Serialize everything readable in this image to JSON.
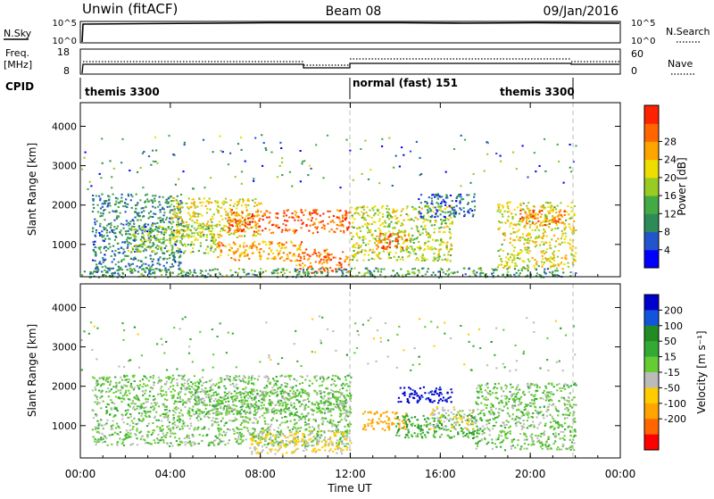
{
  "header": {
    "title_left": "Unwin (fitACF)",
    "title_center": "Beam 08",
    "title_right": "09/Jan/2016"
  },
  "aux": {
    "nsky_label": "N.Sky",
    "nsky_ticks": [
      "10^5",
      "10^0"
    ],
    "nsearch_ticks": [
      "10^5",
      "10^0"
    ],
    "nsearch_label": "N.Search",
    "freq_label": "Freq.",
    "freq_unit": "[MHz]",
    "freq_ticks": [
      "18",
      "8"
    ],
    "nave_ticks": [
      "60",
      "0"
    ],
    "nave_label": "Nave",
    "cpid_label": "CPID",
    "cpid_segments": [
      "themis 3300",
      "normal (fast) 151",
      "themis 3300"
    ],
    "cpid_breaks_hours": [
      12,
      22
    ]
  },
  "axes": {
    "ylabel": "Slant Range [km]",
    "yticks": [
      "1000",
      "2000",
      "3000",
      "4000"
    ],
    "xlabel": "Time UT",
    "xticks": [
      "00:00",
      "04:00",
      "08:00",
      "12:00",
      "16:00",
      "20:00",
      "00:00"
    ]
  },
  "power_cbar": {
    "label": "Power [dB]",
    "ticks": [
      "4",
      "8",
      "12",
      "16",
      "20",
      "24",
      "28"
    ],
    "colors": [
      "#0000ff",
      "#2255cc",
      "#2e8b57",
      "#44aa44",
      "#99cc22",
      "#eedd00",
      "#ffa500",
      "#ff6600",
      "#ff2200"
    ]
  },
  "velocity_cbar": {
    "label": "Velocity [m s⁻¹]",
    "ticks": [
      "200",
      "100",
      "50",
      "15",
      "-15",
      "-50",
      "-100",
      "-200"
    ],
    "colors": [
      "#0000cc",
      "#1155dd",
      "#228b22",
      "#33aa33",
      "#66cc33",
      "#bbbbbb",
      "#ffcc00",
      "#ffa500",
      "#ff6600",
      "#ff0000"
    ]
  },
  "chart_data": [
    {
      "type": "heatmap",
      "panel": "power",
      "x_unit": "hours UT",
      "y_unit": "km",
      "xlim": [
        0,
        24
      ],
      "ylim": [
        180,
        4600
      ],
      "value_range_dB": [
        0,
        30
      ],
      "echo_regions": [
        {
          "t": [
            0.5,
            4.5
          ],
          "range": [
            300,
            2300
          ],
          "value": 8
        },
        {
          "t": [
            2.0,
            6.0
          ],
          "range": [
            800,
            1500
          ],
          "value": 14
        },
        {
          "t": [
            4.0,
            8.0
          ],
          "range": [
            1200,
            2200
          ],
          "value": 18
        },
        {
          "t": [
            6.5,
            12.0
          ],
          "range": [
            1300,
            1900
          ],
          "value": 26
        },
        {
          "t": [
            6.0,
            10.0
          ],
          "range": [
            600,
            1100
          ],
          "value": 22
        },
        {
          "t": [
            9.5,
            12.0
          ],
          "range": [
            300,
            900
          ],
          "value": 24
        },
        {
          "t": [
            12.0,
            16.5
          ],
          "range": [
            600,
            2000
          ],
          "value": 16
        },
        {
          "t": [
            13.0,
            14.5
          ],
          "range": [
            900,
            1300
          ],
          "value": 26
        },
        {
          "t": [
            15.0,
            17.5
          ],
          "range": [
            1700,
            2300
          ],
          "value": 6
        },
        {
          "t": [
            18.5,
            22.0
          ],
          "range": [
            400,
            2100
          ],
          "value": 18
        },
        {
          "t": [
            19.5,
            21.5
          ],
          "range": [
            1500,
            1900
          ],
          "value": 24
        },
        {
          "t": [
            0.0,
            22.0
          ],
          "range": [
            180,
            420
          ],
          "value": 10
        }
      ]
    },
    {
      "type": "heatmap",
      "panel": "velocity",
      "x_unit": "hours UT",
      "y_unit": "km",
      "xlim": [
        0,
        24
      ],
      "ylim": [
        180,
        4600
      ],
      "value_range_ms": [
        -250,
        250
      ],
      "echo_regions": [
        {
          "t": [
            0.5,
            12.0
          ],
          "range": [
            500,
            2300
          ],
          "value": 0
        },
        {
          "t": [
            5.0,
            12.0
          ],
          "range": [
            1300,
            1900
          ],
          "value": 0
        },
        {
          "t": [
            7.5,
            12.0
          ],
          "range": [
            300,
            900
          ],
          "value": -60
        },
        {
          "t": [
            12.5,
            14.5
          ],
          "range": [
            900,
            1400
          ],
          "value": -150
        },
        {
          "t": [
            14.0,
            16.5
          ],
          "range": [
            1600,
            2000
          ],
          "value": 220
        },
        {
          "t": [
            14.0,
            17.5
          ],
          "range": [
            700,
            1300
          ],
          "value": 30
        },
        {
          "t": [
            15.5,
            17.5
          ],
          "range": [
            900,
            1500
          ],
          "value": -40
        },
        {
          "t": [
            17.5,
            22.0
          ],
          "range": [
            400,
            2100
          ],
          "value": 0
        }
      ]
    }
  ]
}
